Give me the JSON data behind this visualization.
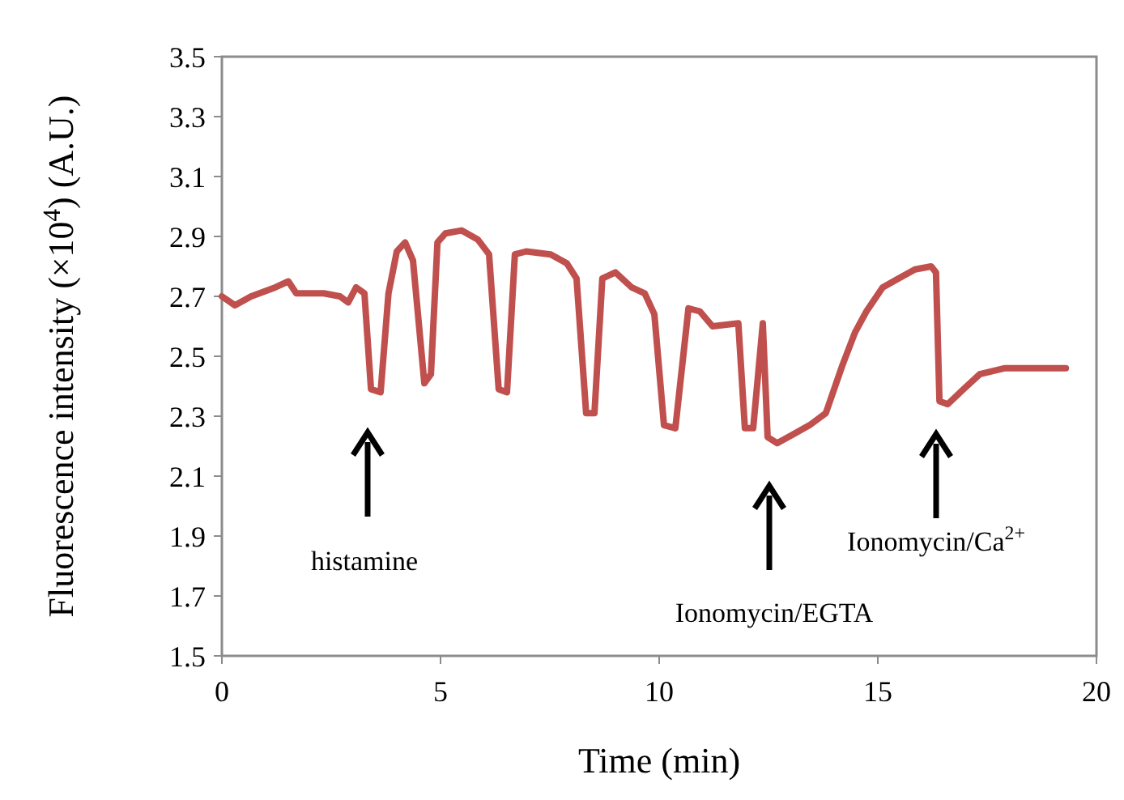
{
  "chart_data": {
    "type": "line",
    "xlabel": "Time (min)",
    "ylabel": "Fluorescence intensity (×10$^{4}$) (A.U.)",
    "xlim": [
      0,
      20
    ],
    "xticks": [
      0,
      5,
      10,
      15,
      20
    ],
    "ylim": [
      1.5,
      3.5
    ],
    "yticks": [
      {
        "value": 1.5,
        "label": "1.5"
      },
      {
        "value": 1.7,
        "label": "1.7"
      },
      {
        "value": 1.9,
        "label": "1.9"
      },
      {
        "value": 2.1,
        "label": "2.1"
      },
      {
        "value": 2.3,
        "label": "2.3"
      },
      {
        "value": 2.5,
        "label": "2.5"
      },
      {
        "value": 2.7,
        "label": "2.7"
      },
      {
        "value": 2.9,
        "label": "2.9"
      },
      {
        "value": 3.1,
        "label": "3.1"
      },
      {
        "value": 3.3,
        "label": "3.3"
      },
      {
        "value": 3.5,
        "label": "3.5"
      }
    ],
    "grid": false,
    "series": [
      {
        "color": "#c0504d",
        "x": [
          0,
          0.3,
          0.67,
          1.22,
          1.52,
          1.7,
          2.33,
          2.7,
          2.89,
          3.07,
          3.26,
          3.41,
          3.63,
          3.81,
          4.0,
          4.19,
          4.37,
          4.63,
          4.78,
          4.93,
          5.11,
          5.48,
          5.85,
          6.11,
          6.33,
          6.52,
          6.7,
          6.96,
          7.52,
          7.89,
          8.11,
          8.33,
          8.52,
          8.7,
          9.0,
          9.37,
          9.67,
          9.89,
          10.11,
          10.37,
          10.67,
          10.93,
          11.22,
          11.81,
          11.96,
          12.15,
          12.37,
          12.48,
          12.7,
          13.07,
          13.44,
          13.81,
          14.19,
          14.48,
          14.74,
          15.11,
          15.48,
          15.85,
          16.22,
          16.33,
          16.41,
          16.6,
          16.96,
          17.33,
          17.89,
          18.44,
          19.0,
          19.3
        ],
        "values": [
          2.7,
          2.67,
          2.7,
          2.73,
          2.75,
          2.71,
          2.71,
          2.7,
          2.68,
          2.73,
          2.71,
          2.39,
          2.38,
          2.71,
          2.85,
          2.88,
          2.82,
          2.41,
          2.44,
          2.88,
          2.91,
          2.92,
          2.89,
          2.84,
          2.39,
          2.38,
          2.84,
          2.85,
          2.84,
          2.81,
          2.76,
          2.31,
          2.31,
          2.76,
          2.78,
          2.73,
          2.71,
          2.64,
          2.27,
          2.26,
          2.66,
          2.65,
          2.6,
          2.61,
          2.26,
          2.26,
          2.61,
          2.23,
          2.21,
          2.24,
          2.27,
          2.31,
          2.47,
          2.58,
          2.65,
          2.73,
          2.76,
          2.79,
          2.8,
          2.78,
          2.35,
          2.34,
          2.39,
          2.44,
          2.46,
          2.46,
          2.46,
          2.46
        ]
      }
    ],
    "annotations": [
      "histamine",
      "Ionomycin/EGTA",
      "Ionomycin/Ca$^{2+}$"
    ]
  }
}
